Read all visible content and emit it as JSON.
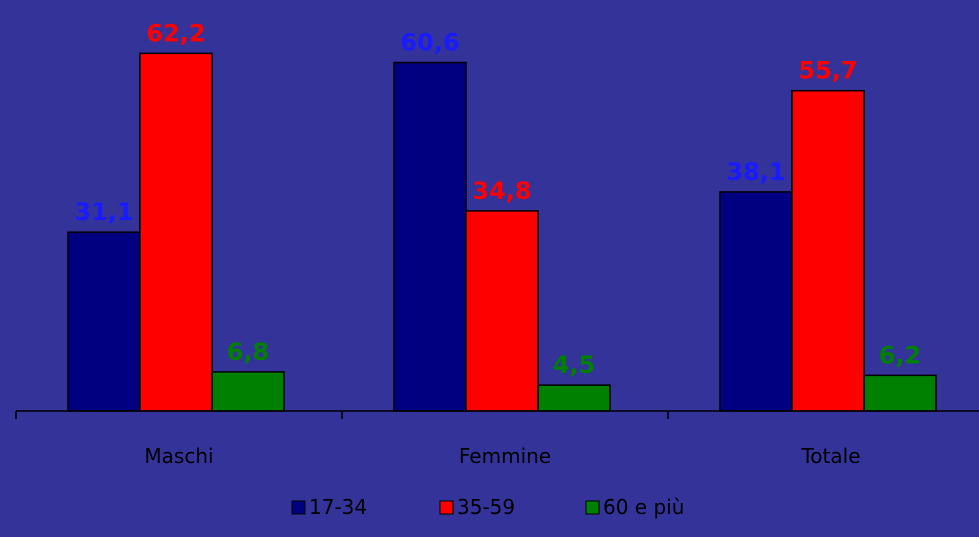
{
  "chart_data": {
    "type": "bar",
    "categories": [
      "Maschi",
      "Femmine",
      "Totale"
    ],
    "series": [
      {
        "name": "17-34",
        "values": [
          31.1,
          60.6,
          38.1
        ],
        "value_labels": [
          "31,1",
          "60,6",
          "38,1"
        ],
        "color": "#000080",
        "label_color": "#1a1aff"
      },
      {
        "name": "35-59",
        "values": [
          62.2,
          34.8,
          55.7
        ],
        "value_labels": [
          "62,2",
          "34,8",
          "55,7"
        ],
        "color": "#ff0000",
        "label_color": "#ff0000"
      },
      {
        "name": "60 e più",
        "values": [
          6.8,
          4.5,
          6.2
        ],
        "value_labels": [
          "6,8",
          "4,5",
          "6,2"
        ],
        "color": "#008000",
        "label_color": "#008000"
      }
    ],
    "ylim": [
      0,
      70
    ],
    "grid": false,
    "legend_position": "bottom",
    "background": "#333399"
  }
}
